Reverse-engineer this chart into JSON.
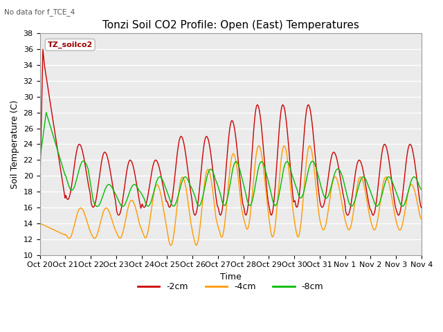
{
  "title": "Tonzi Soil CO2 Profile: Open (East) Temperatures",
  "subtitle": "No data for f_TCE_4",
  "ylabel": "Soil Temperature (C)",
  "xlabel": "Time",
  "ylim": [
    10,
    38
  ],
  "yticks": [
    10,
    12,
    14,
    16,
    18,
    20,
    22,
    24,
    26,
    28,
    30,
    32,
    34,
    36,
    38
  ],
  "xtick_labels": [
    "Oct 20",
    "Oct 21",
    "Oct 22",
    "Oct 23",
    "Oct 24",
    "Oct 25",
    "Oct 26",
    "Oct 27",
    "Oct 28",
    "Oct 29",
    "Oct 30",
    "Oct 31",
    "Nov 1",
    "Nov 2",
    "Nov 3",
    "Nov 4"
  ],
  "legend_label": "TZ_soilco2",
  "line_colors": {
    "2cm": "#cc0000",
    "4cm": "#ff9900",
    "8cm": "#00bb00"
  },
  "line_labels": [
    "-2cm",
    "-4cm",
    "-8cm"
  ],
  "background_color": "#ffffff",
  "plot_bg_color": "#ebebeb",
  "grid_color": "#ffffff",
  "n_days": 15,
  "title_fontsize": 11,
  "axis_fontsize": 9,
  "tick_fontsize": 8,
  "figwidth": 6.4,
  "figheight": 4.8,
  "dpi": 100
}
